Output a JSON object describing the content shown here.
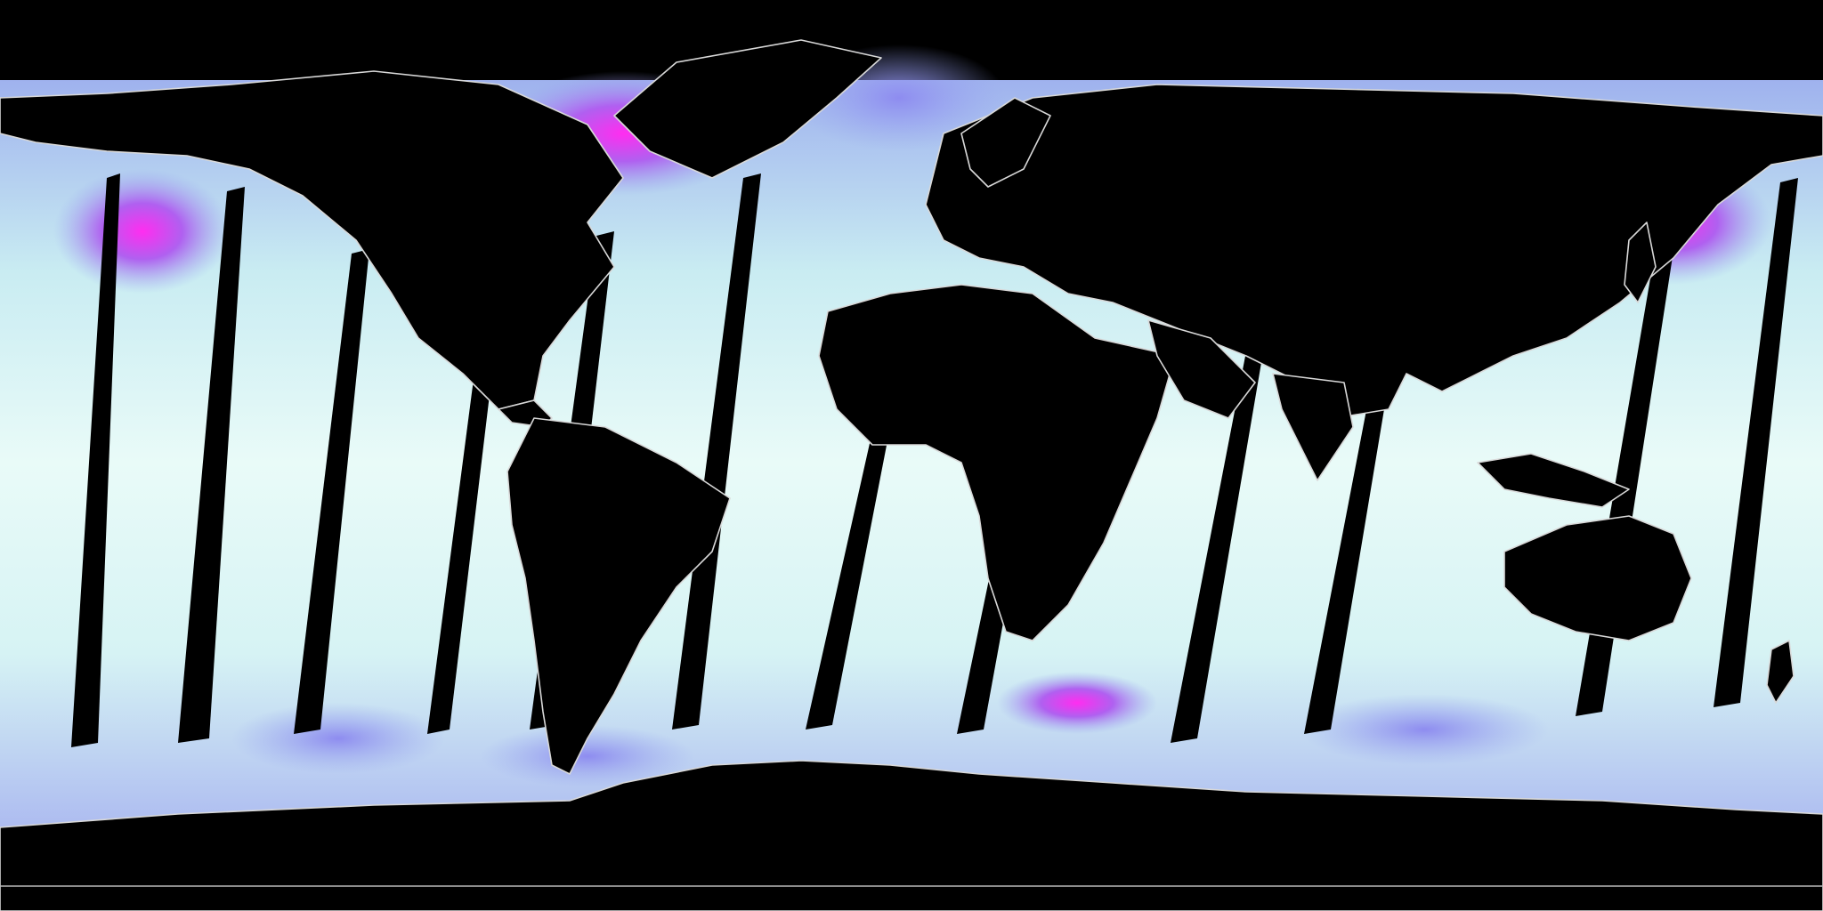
{
  "map": {
    "projection": "equirectangular",
    "colors": {
      "background": "#000000",
      "land": "#000000",
      "coastline": "#d8d8d8",
      "low": "#e6fbf8",
      "mid": "#9aa8f0",
      "high": "#f02cf0"
    },
    "high_value_regions": [
      "north-atlantic",
      "north-pacific-west",
      "north-pacific-east",
      "southern-ocean"
    ],
    "data_gaps": "diagonal-orbit-swaths"
  }
}
